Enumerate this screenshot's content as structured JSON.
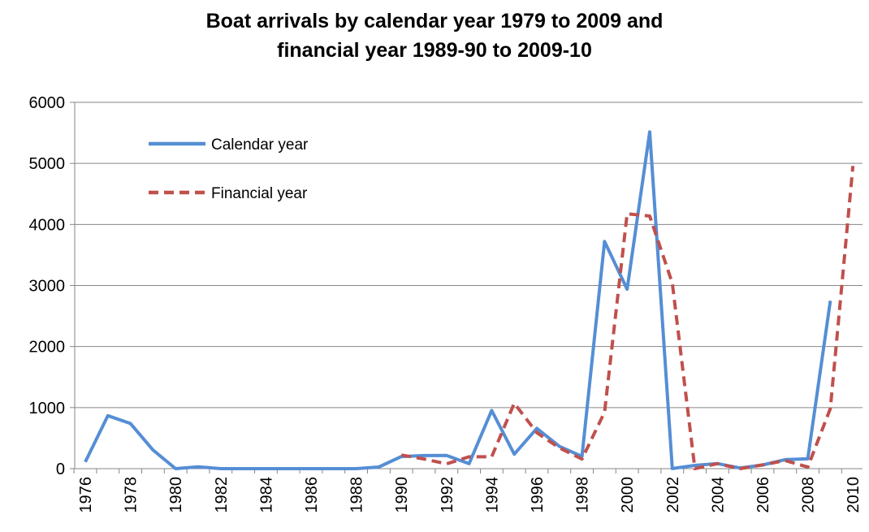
{
  "chart_data": {
    "type": "line",
    "title_line1": "Boat arrivals by calendar year 1979 to 2009 and",
    "title_line2": "financial year  1989-90 to 2009-10",
    "xlabel": "",
    "ylabel": "",
    "xlim": [
      1976,
      2010
    ],
    "ylim": [
      0,
      6000
    ],
    "y_ticks": [
      0,
      1000,
      2000,
      3000,
      4000,
      5000,
      6000
    ],
    "x_tick_labels": [
      "1976",
      "1978",
      "1980",
      "1982",
      "1984",
      "1986",
      "1988",
      "1990",
      "1992",
      "1994",
      "1996",
      "1998",
      "2000",
      "2002",
      "2004",
      "2006",
      "2008",
      "2010"
    ],
    "grid": "horizontal",
    "legend_position": "top-left",
    "series": [
      {
        "name": "Calendar year",
        "color": "#558ed5",
        "style": "solid",
        "x": [
          1976,
          1977,
          1978,
          1979,
          1980,
          1981,
          1982,
          1983,
          1984,
          1985,
          1986,
          1987,
          1988,
          1989,
          1990,
          1991,
          1992,
          1993,
          1994,
          1995,
          1996,
          1997,
          1998,
          1999,
          2000,
          2001,
          2002,
          2003,
          2004,
          2005,
          2006,
          2007,
          2008,
          2009
        ],
        "y": [
          111,
          868,
          740,
          304,
          0,
          30,
          0,
          0,
          0,
          0,
          0,
          0,
          0,
          26,
          198,
          214,
          216,
          81,
          953,
          237,
          660,
          365,
          200,
          3721,
          2939,
          5516,
          1,
          53,
          82,
          11,
          60,
          148,
          161,
          2750
        ]
      },
      {
        "name": "Financial year",
        "color": "#c0504d",
        "style": "dashed",
        "x": [
          1990,
          1991,
          1992,
          1993,
          1994,
          1995,
          1996,
          1997,
          1998,
          1999,
          2000,
          2001,
          2002,
          2003,
          2004,
          2005,
          2006,
          2007,
          2008,
          2009,
          2010
        ],
        "y": [
          224,
          158,
          78,
          194,
          194,
          1071,
          589,
          339,
          157,
          926,
          4175,
          4137,
          3039,
          0,
          82,
          0,
          61,
          133,
          25,
          985,
          4958
        ]
      }
    ]
  }
}
